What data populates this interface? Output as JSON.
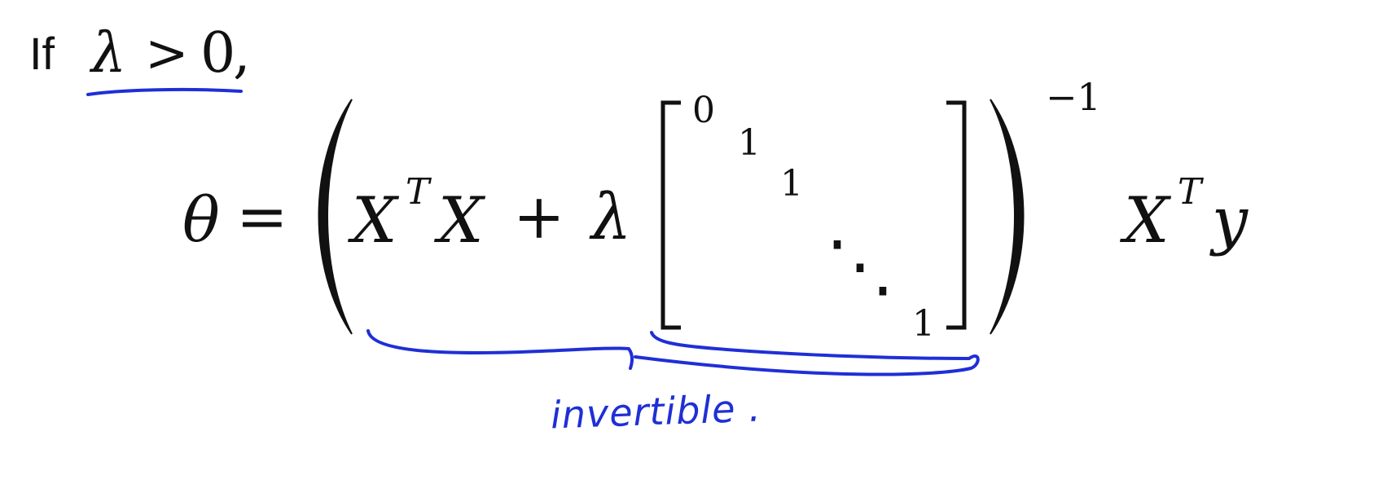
{
  "condition": {
    "prefix": "If",
    "lambda": "λ",
    "relation": ">",
    "zero": "0",
    "comma": ","
  },
  "equation": {
    "theta": "θ",
    "equals": "=",
    "X1": "X",
    "T1": "T",
    "X2": "X",
    "plus": "+",
    "lambda": "λ",
    "inverse_exponent": "−1",
    "X3": "X",
    "T3": "T",
    "y": "y"
  },
  "matrix": {
    "entries": [
      "0",
      "1",
      "1",
      "⋱",
      "1"
    ]
  },
  "annotation": {
    "text": "invertible .",
    "ink_color": "#1f2fd6"
  }
}
